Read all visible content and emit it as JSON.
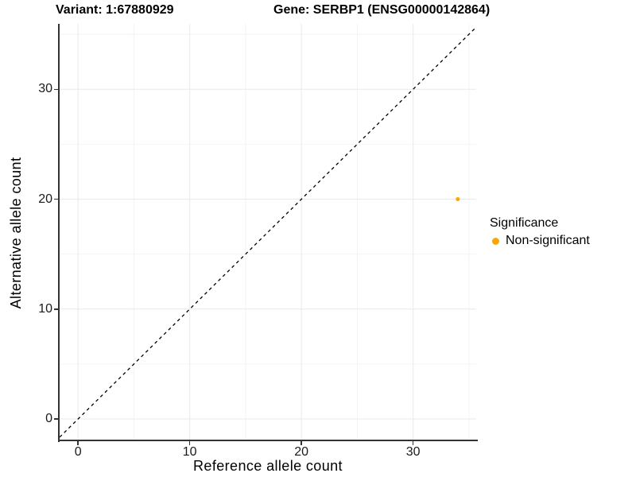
{
  "header": {
    "variant_title": "Variant: 1:67880929",
    "gene_title": "Gene: SERBP1 (ENSG00000142864)"
  },
  "chart_data": {
    "type": "scatter",
    "xlabel": "Reference allele count",
    "ylabel": "Alternative allele count",
    "xlim": [
      -1.65,
      35.65
    ],
    "ylim": [
      -1.95,
      35.95
    ],
    "x_ticks": [
      0,
      10,
      20,
      30
    ],
    "y_ticks": [
      0,
      10,
      20,
      30
    ],
    "x_minor_ticks": [
      5,
      15,
      25,
      35
    ],
    "y_minor_ticks": [
      5,
      15,
      25,
      35
    ],
    "grid": "major and minor gridlines on white background",
    "legend_position": "right",
    "reference_line": {
      "kind": "identity y=x",
      "style": "dashed",
      "color": "#000000"
    },
    "series": [
      {
        "name": "Non-significant",
        "color": "#FFA500",
        "points": [
          {
            "x": 34,
            "y": 20
          }
        ]
      }
    ],
    "legend": {
      "title": "Significance",
      "entries": [
        {
          "label": "Non-significant",
          "color": "#FFA500"
        }
      ]
    }
  },
  "style_colors": {
    "background": "#FFFFFF",
    "axis_line": "#333333",
    "grid_major": "#E9E9E9",
    "grid_minor": "#F4F4F4",
    "tick_text": "#1A1A1A",
    "point_color": "#FFA500"
  }
}
